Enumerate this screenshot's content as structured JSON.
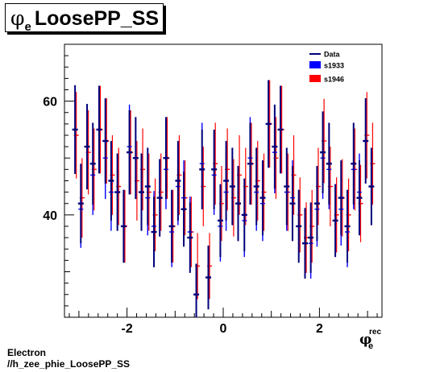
{
  "title": {
    "symbol": "φ",
    "subscript": "e",
    "text": "LoosePP_SS"
  },
  "xaxis": {
    "symbol": "φ",
    "superscript": "rec",
    "subscript": "e"
  },
  "footer": {
    "line1": "Electron",
    "line2": "//h_zee_phie_LoosePP_SS"
  },
  "legend": [
    {
      "label": "Data",
      "style": "line",
      "color": "#00007a"
    },
    {
      "label": "s1933",
      "style": "box",
      "color": "#0000ff"
    },
    {
      "label": "s1946",
      "style": "box",
      "color": "#ff0000"
    }
  ],
  "chart_data": {
    "type": "scatter",
    "xlim": [
      -3.3,
      3.3
    ],
    "ylim": [
      22,
      70
    ],
    "x_ticks": [
      -2,
      0,
      2
    ],
    "x_tick_labels": [
      "-2",
      "0",
      "2"
    ],
    "y_ticks": [
      40,
      60
    ],
    "y_tick_labels": [
      "40",
      "60"
    ],
    "xlabel": "φe rec",
    "grid": false,
    "legend_position": "top-right",
    "bin_width": 0.126,
    "x": [
      -3.08,
      -2.96,
      -2.83,
      -2.71,
      -2.58,
      -2.45,
      -2.33,
      -2.2,
      -2.07,
      -1.95,
      -1.82,
      -1.7,
      -1.57,
      -1.44,
      -1.32,
      -1.19,
      -1.07,
      -0.94,
      -0.82,
      -0.69,
      -0.56,
      -0.44,
      -0.31,
      -0.19,
      -0.06,
      0.06,
      0.19,
      0.31,
      0.44,
      0.56,
      0.69,
      0.82,
      0.94,
      1.07,
      1.19,
      1.32,
      1.44,
      1.57,
      1.7,
      1.82,
      1.95,
      2.07,
      2.2,
      2.33,
      2.45,
      2.58,
      2.71,
      2.83,
      2.96,
      3.08
    ],
    "series": [
      {
        "name": "Data",
        "color": "#00007a",
        "values": [
          55,
          42,
          52,
          49,
          55,
          53,
          46,
          44,
          38,
          51,
          50,
          44,
          45,
          37,
          43,
          50,
          38,
          46,
          41,
          36,
          26,
          48,
          29,
          48,
          39,
          46,
          45,
          42,
          40,
          49,
          45,
          43,
          56,
          52,
          55,
          45,
          42,
          38,
          35,
          36,
          42,
          51,
          49,
          39,
          43,
          38,
          49,
          43,
          53,
          45
        ]
      },
      {
        "name": "s1933",
        "color": "#0000ff",
        "values": [
          55,
          41,
          52,
          47,
          55,
          50,
          44,
          44,
          38,
          52,
          50,
          44,
          43,
          38,
          43,
          48,
          37,
          45,
          43,
          37,
          26,
          49,
          29,
          47,
          38,
          44,
          45,
          42,
          39,
          50,
          44,
          42,
          56,
          51,
          55,
          44,
          43,
          38,
          35,
          35,
          41,
          50,
          48,
          39,
          41,
          37,
          48,
          44,
          53,
          45
        ]
      },
      {
        "name": "s1946",
        "color": "#ff0000",
        "values": [
          54,
          43,
          51,
          48,
          55,
          53,
          47,
          45,
          38,
          51,
          46,
          48,
          44,
          40,
          44,
          50,
          38,
          47,
          43,
          37,
          31,
          45,
          31,
          49,
          42,
          48,
          43,
          47,
          45,
          49,
          46,
          44,
          56,
          50,
          55,
          44,
          47,
          40,
          36,
          38,
          45,
          53,
          45,
          40,
          43,
          40,
          48,
          42,
          54,
          49
        ]
      }
    ],
    "errors": [
      [
        7.8,
        7.0,
        7.5,
        7.2,
        7.7,
        7.5,
        7.0,
        6.8,
        6.4,
        7.4,
        7.2,
        6.8,
        6.8,
        6.2,
        6.8,
        7.2,
        6.4,
        7.0,
        6.6,
        6.2,
        5.4,
        7.0,
        5.6,
        7.0,
        6.4,
        7.0,
        6.8,
        6.6,
        6.4,
        7.2,
        6.8,
        6.6,
        7.7,
        7.4,
        7.7,
        6.8,
        6.6,
        6.4,
        6.2,
        6.2,
        6.6,
        7.2,
        7.2,
        6.4,
        6.6,
        6.4,
        7.2,
        6.6,
        7.5,
        6.8
      ],
      [
        7.8,
        6.8,
        7.5,
        7.0,
        7.7,
        7.2,
        6.8,
        6.8,
        6.4,
        7.4,
        7.2,
        6.8,
        6.6,
        6.2,
        6.8,
        7.0,
        6.2,
        6.8,
        6.6,
        6.2,
        5.4,
        7.2,
        5.6,
        7.0,
        6.2,
        6.8,
        6.8,
        6.6,
        6.4,
        7.2,
        6.8,
        6.6,
        7.7,
        7.2,
        7.7,
        6.8,
        6.6,
        6.4,
        6.2,
        6.2,
        6.6,
        7.2,
        7.0,
        6.4,
        6.4,
        6.2,
        7.0,
        6.8,
        7.5,
        6.8
      ],
      [
        7.6,
        7.0,
        7.4,
        7.2,
        7.7,
        7.5,
        7.0,
        6.8,
        6.4,
        7.4,
        7.0,
        7.2,
        6.8,
        6.4,
        6.8,
        7.2,
        6.4,
        7.0,
        6.6,
        6.2,
        5.8,
        7.0,
        5.8,
        7.2,
        6.6,
        7.2,
        6.8,
        7.0,
        6.8,
        7.2,
        7.0,
        6.8,
        7.7,
        7.2,
        7.7,
        6.8,
        7.0,
        6.6,
        6.2,
        6.4,
        6.8,
        7.4,
        7.0,
        6.6,
        6.8,
        6.4,
        7.2,
        6.8,
        7.6,
        7.2
      ]
    ]
  }
}
